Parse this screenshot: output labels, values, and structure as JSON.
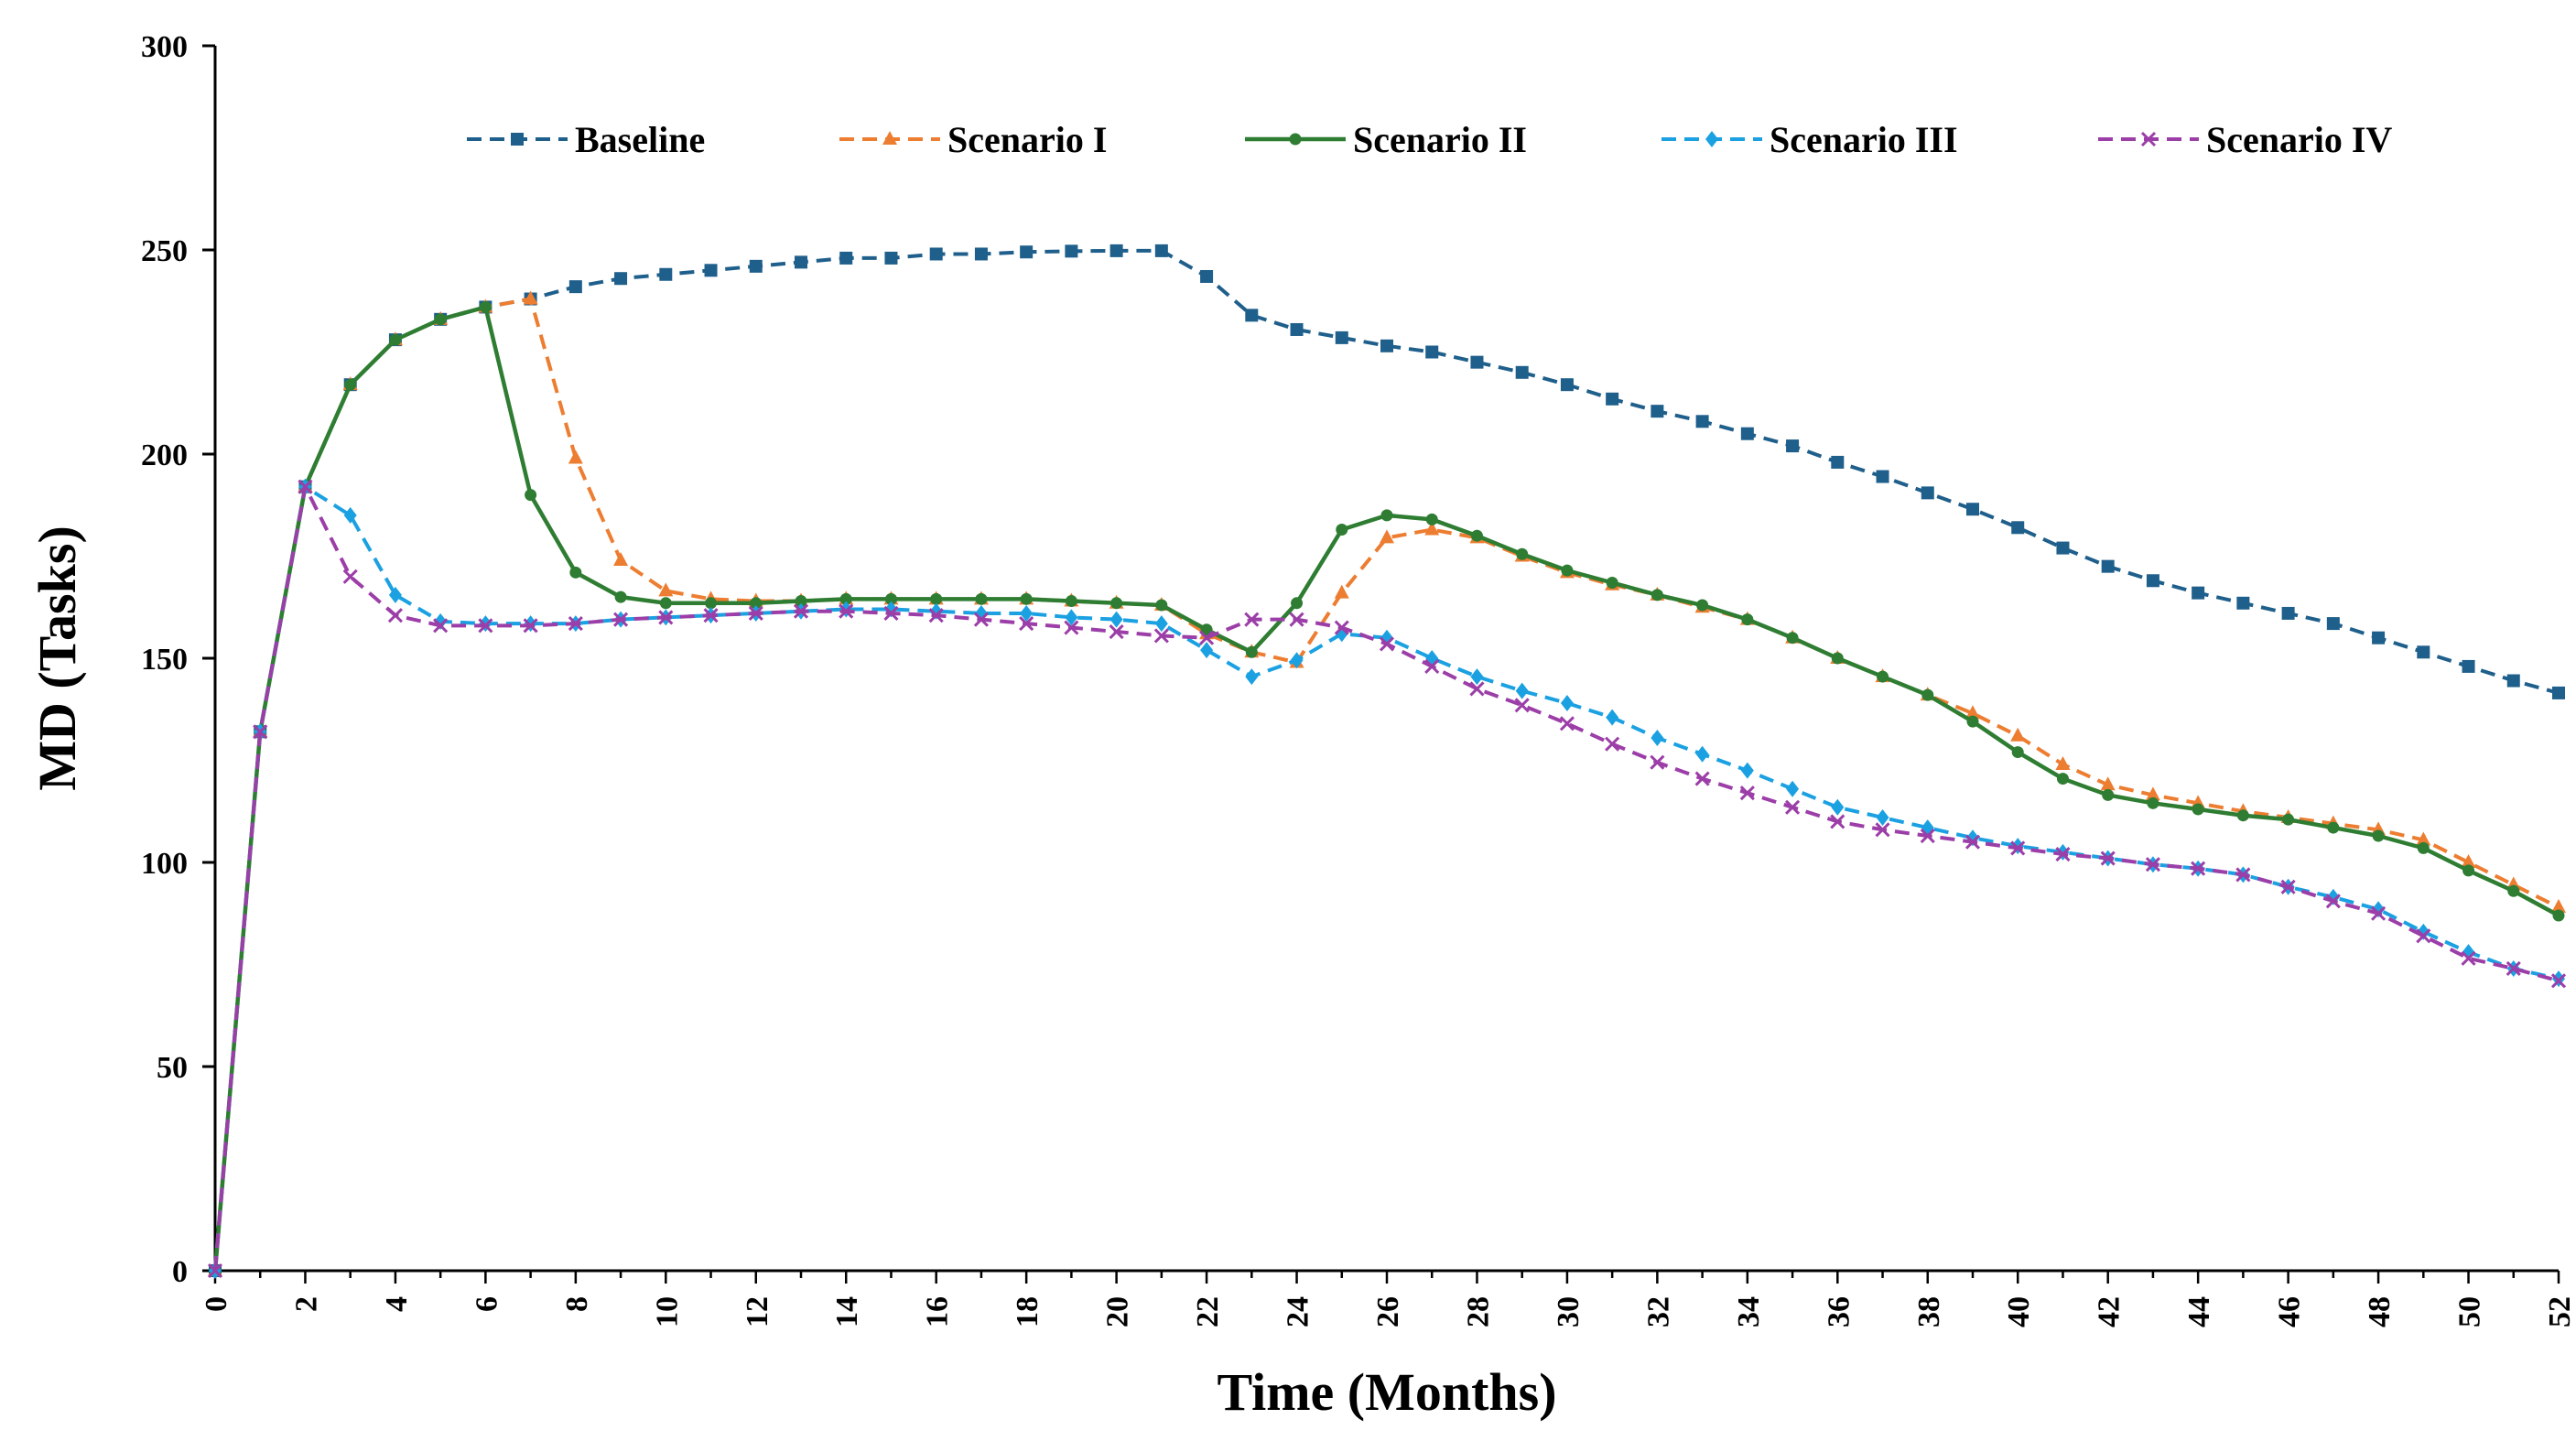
{
  "chart_data": {
    "type": "line",
    "title": "",
    "xlabel": "Time (Months)",
    "ylabel": "MD (Tasks)",
    "xlim": [
      0,
      52
    ],
    "ylim": [
      0,
      300
    ],
    "xticks": [
      0,
      2,
      4,
      6,
      8,
      10,
      12,
      14,
      16,
      18,
      20,
      22,
      24,
      26,
      28,
      30,
      32,
      34,
      36,
      38,
      40,
      42,
      44,
      46,
      48,
      50,
      52
    ],
    "yticks": [
      0,
      50,
      100,
      150,
      200,
      250,
      300
    ],
    "grid": false,
    "legend_position": "top",
    "x": [
      0,
      1,
      2,
      3,
      4,
      5,
      6,
      7,
      8,
      9,
      10,
      11,
      12,
      13,
      14,
      15,
      16,
      17,
      18,
      19,
      20,
      21,
      22,
      23,
      24,
      25,
      26,
      27,
      28,
      29,
      30,
      31,
      32,
      33,
      34,
      35,
      36,
      37,
      38,
      39,
      40,
      41,
      42,
      43,
      44,
      45,
      46,
      47,
      48,
      49,
      50,
      51,
      52
    ],
    "series": [
      {
        "name": "Baseline",
        "color": "#1f5f8b",
        "dash": "dashed",
        "marker": "square",
        "values": [
          0,
          132,
          192,
          217,
          228,
          233,
          236,
          238,
          241,
          243,
          244,
          245,
          246,
          247,
          248,
          248,
          249,
          249,
          249.5,
          249.7,
          249.8,
          249.8,
          243.5,
          234,
          230.5,
          228.5,
          226.5,
          225,
          222.5,
          220,
          217,
          213.5,
          210.5,
          208,
          205,
          202,
          198,
          194.5,
          190.5,
          186.5,
          182,
          177,
          172.5,
          169,
          166,
          163.5,
          161,
          158.5,
          155,
          151.5,
          148,
          144.5,
          141.5
        ]
      },
      {
        "name": "Scenario I",
        "color": "#ed7d31",
        "dash": "dashed",
        "marker": "triangle",
        "values": [
          0,
          132,
          192,
          217,
          228,
          233,
          236,
          238,
          199,
          174,
          166.5,
          164.5,
          164,
          164,
          164.5,
          164.5,
          164.5,
          164.5,
          164.5,
          164,
          163.5,
          163,
          156,
          151.5,
          149,
          166,
          179.5,
          181.5,
          179.5,
          175,
          171,
          168,
          165.5,
          162.5,
          159.5,
          155,
          150,
          145.5,
          141,
          136.5,
          131,
          124,
          119,
          116.5,
          114.5,
          112.5,
          111,
          109.5,
          108,
          105.5,
          100,
          94.5,
          89
        ]
      },
      {
        "name": "Scenario II",
        "color": "#2e7d32",
        "dash": "solid",
        "marker": "circle",
        "values": [
          0,
          132,
          192,
          217,
          228,
          233,
          236,
          190,
          171,
          165,
          163.5,
          163.5,
          163.5,
          164,
          164.5,
          164.5,
          164.5,
          164.5,
          164.5,
          164,
          163.5,
          163,
          157,
          151.5,
          163.5,
          181.5,
          185,
          184,
          180,
          175.5,
          171.5,
          168.5,
          165.5,
          163,
          159.5,
          155,
          150,
          145.5,
          141,
          134.5,
          127,
          120.5,
          116.5,
          114.5,
          113,
          111.5,
          110.5,
          108.5,
          106.5,
          103.5,
          98,
          93,
          87
        ]
      },
      {
        "name": "Scenario III",
        "color": "#1ba1e2",
        "dash": "dashed",
        "marker": "diamond",
        "values": [
          0,
          132,
          192,
          185,
          165.5,
          159,
          158.5,
          158.5,
          158.5,
          159.5,
          160,
          160.5,
          161,
          161.5,
          162,
          162,
          161.5,
          161,
          161,
          160,
          159.5,
          158.5,
          152,
          145.5,
          149.5,
          156,
          155,
          150,
          145.5,
          142,
          139,
          135.5,
          130.5,
          126.5,
          122.5,
          118,
          113.5,
          111,
          108.5,
          106,
          104,
          102.5,
          101,
          99.5,
          98.5,
          97,
          94,
          91.5,
          88.5,
          83,
          78,
          74,
          71.5
        ]
      },
      {
        "name": "Scenario IV",
        "color": "#9c3ea8",
        "dash": "dashed",
        "marker": "x",
        "values": [
          0,
          132,
          192,
          170,
          160.5,
          158,
          158,
          158,
          158.5,
          159.5,
          160,
          160.5,
          161,
          161.5,
          161.5,
          161,
          160.5,
          159.5,
          158.5,
          157.5,
          156.5,
          155.5,
          155,
          159.5,
          159.5,
          157.5,
          153.5,
          148,
          142.5,
          138.5,
          134,
          129,
          124.5,
          120.5,
          117,
          113.5,
          110,
          108,
          106.5,
          105,
          103.5,
          102,
          101,
          99.5,
          98.5,
          97,
          94,
          90.5,
          87.5,
          82,
          76.5,
          74,
          71
        ]
      }
    ]
  }
}
